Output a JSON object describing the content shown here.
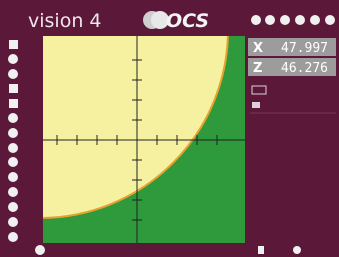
{
  "header": {
    "title": "vision 4",
    "logo": "OCS"
  },
  "readouts": [
    {
      "axis": "X",
      "value": 47.997
    },
    {
      "axis": "Z",
      "value": 46.276
    }
  ]
}
